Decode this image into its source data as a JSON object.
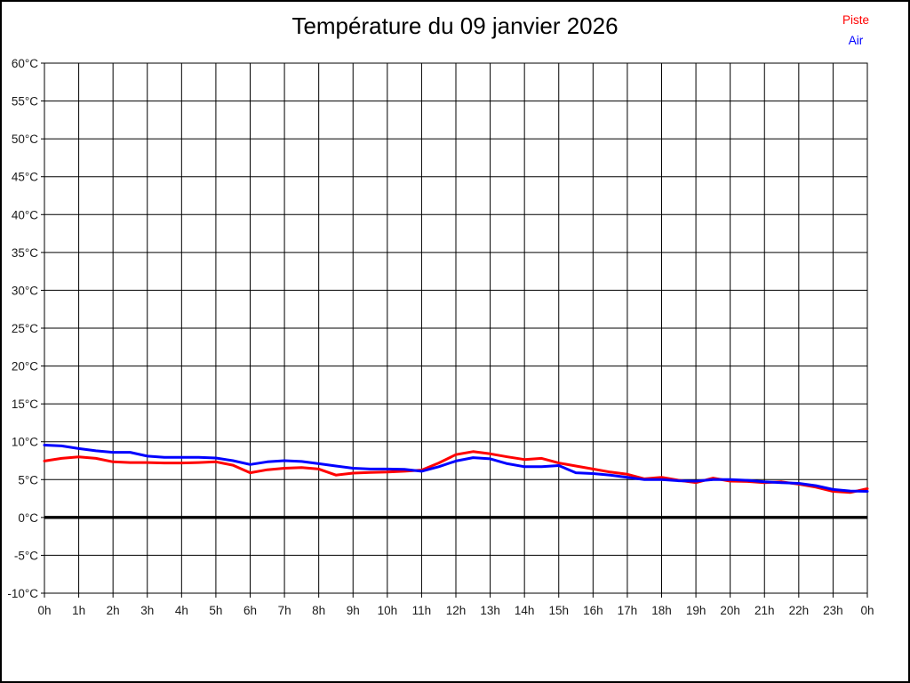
{
  "window": {
    "background": "#ffffff",
    "border_color": "#000000"
  },
  "chart_data": {
    "type": "line",
    "title": "Température du 09 janvier 2026",
    "xlabel": "",
    "ylabel": "",
    "grid": "on",
    "zero_line": "thick-black",
    "x_axis": {
      "unit": "h",
      "range_hours": [
        0,
        24
      ],
      "tick_labels": [
        "0h",
        "1h",
        "2h",
        "3h",
        "4h",
        "5h",
        "6h",
        "7h",
        "8h",
        "9h",
        "10h",
        "11h",
        "12h",
        "13h",
        "14h",
        "15h",
        "16h",
        "17h",
        "18h",
        "19h",
        "20h",
        "21h",
        "22h",
        "23h",
        "0h"
      ]
    },
    "y_axis": {
      "unit": "°C",
      "min": -10,
      "max": 60,
      "tick_step": 5,
      "tick_labels": [
        "60°C",
        "55°C",
        "50°C",
        "45°C",
        "40°C",
        "35°C",
        "30°C",
        "25°C",
        "20°C",
        "15°C",
        "10°C",
        "5°C",
        "0°C",
        "-5°C",
        "-10°C"
      ]
    },
    "legend": {
      "position": "top-right",
      "entries": [
        "Piste",
        "Air"
      ]
    },
    "x_step_hours": 0.5,
    "series": [
      {
        "name": "Piste",
        "color": "#ff0000",
        "values": [
          7.45,
          7.8,
          8.0,
          7.8,
          7.35,
          7.25,
          7.25,
          7.2,
          7.2,
          7.25,
          7.35,
          6.9,
          5.9,
          6.3,
          6.5,
          6.6,
          6.4,
          5.6,
          5.85,
          5.95,
          6.0,
          6.1,
          6.25,
          7.2,
          8.3,
          8.7,
          8.4,
          8.0,
          7.65,
          7.8,
          7.2,
          6.8,
          6.4,
          6.0,
          5.7,
          5.1,
          5.3,
          4.9,
          4.6,
          5.2,
          4.8,
          4.75,
          4.6,
          4.7,
          4.4,
          4.0,
          3.45,
          3.3,
          3.8
        ]
      },
      {
        "name": "Air",
        "color": "#0000ff",
        "values": [
          9.55,
          9.45,
          9.1,
          8.8,
          8.6,
          8.6,
          8.1,
          7.95,
          7.95,
          7.95,
          7.85,
          7.5,
          7.0,
          7.35,
          7.5,
          7.4,
          7.1,
          6.8,
          6.5,
          6.4,
          6.4,
          6.35,
          6.1,
          6.7,
          7.45,
          7.9,
          7.75,
          7.1,
          6.7,
          6.7,
          6.85,
          5.9,
          5.8,
          5.6,
          5.3,
          5.0,
          5.0,
          4.85,
          4.8,
          5.0,
          5.0,
          4.9,
          4.7,
          4.6,
          4.5,
          4.2,
          3.7,
          3.5,
          3.45
        ]
      }
    ]
  }
}
